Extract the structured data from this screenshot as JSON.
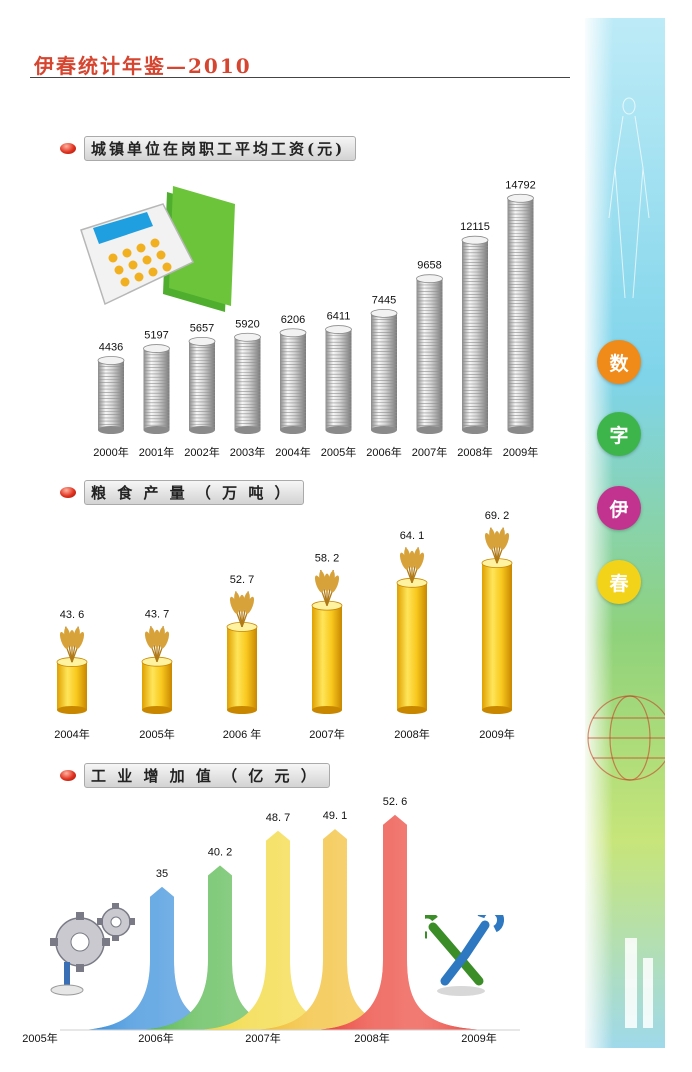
{
  "header": {
    "title": "伊春统计年鉴—2010"
  },
  "sidebar": {
    "labels": [
      "数",
      "字",
      "伊",
      "春"
    ],
    "colors": [
      "#f08a18",
      "#3db54a",
      "#c2328f",
      "#f2d31a"
    ]
  },
  "sections": {
    "wages": {
      "title": "城镇单位在岗职工平均工资(元)"
    },
    "grain": {
      "title": "粮 食 产 量 （ 万 吨 ）"
    },
    "industry": {
      "title": "工 业 增 加 值 （ 亿 元 ）"
    }
  },
  "icons": {
    "wages": "calculator-folder-icon",
    "industry_left": "gears-icon",
    "industry_right": "wrench-icon"
  },
  "chart_data": [
    {
      "type": "bar",
      "title": "城镇单位在岗职工平均工资(元)",
      "categories": [
        "2000年",
        "2001年",
        "2002年",
        "2003年",
        "2004年",
        "2005年",
        "2006年",
        "2007年",
        "2008年",
        "2009年"
      ],
      "values": [
        4436,
        5197,
        5657,
        5920,
        6206,
        6411,
        7445,
        9658,
        12115,
        14792
      ],
      "xlabel": "",
      "ylabel": "",
      "ylim": [
        0,
        15000
      ],
      "style": "stacked coins"
    },
    {
      "type": "bar",
      "title": "粮 食 产 量 （ 万 吨 ）",
      "categories": [
        "2004年",
        "2005年",
        "2006 年",
        "2007年",
        "2008年",
        "2009年"
      ],
      "values": [
        43.6,
        43.7,
        52.7,
        58.2,
        64.1,
        69.2
      ],
      "value_labels": [
        "43. 6",
        "43. 7",
        "52. 7",
        "58. 2",
        "64. 1",
        "69. 2"
      ],
      "xlabel": "",
      "ylabel": "",
      "ylim": [
        0,
        70
      ],
      "style": "yellow cylinders with wheat"
    },
    {
      "type": "bar",
      "title": "工 业 增 加 值 （ 亿 元 ）",
      "categories": [
        "2005年",
        "2006年",
        "2007年",
        "2008年",
        "2009年"
      ],
      "values": [
        35,
        40.2,
        48.7,
        49.1,
        52.6
      ],
      "value_labels": [
        "35",
        "40. 2",
        "48. 7",
        "49. 1",
        "52. 6"
      ],
      "colors": [
        "#1d7fd6",
        "#3fae36",
        "#f0d21c",
        "#f0b414",
        "#e8281c"
      ],
      "xlabel": "",
      "ylabel": "",
      "ylim": [
        0,
        55
      ],
      "style": "curved arrows"
    }
  ]
}
